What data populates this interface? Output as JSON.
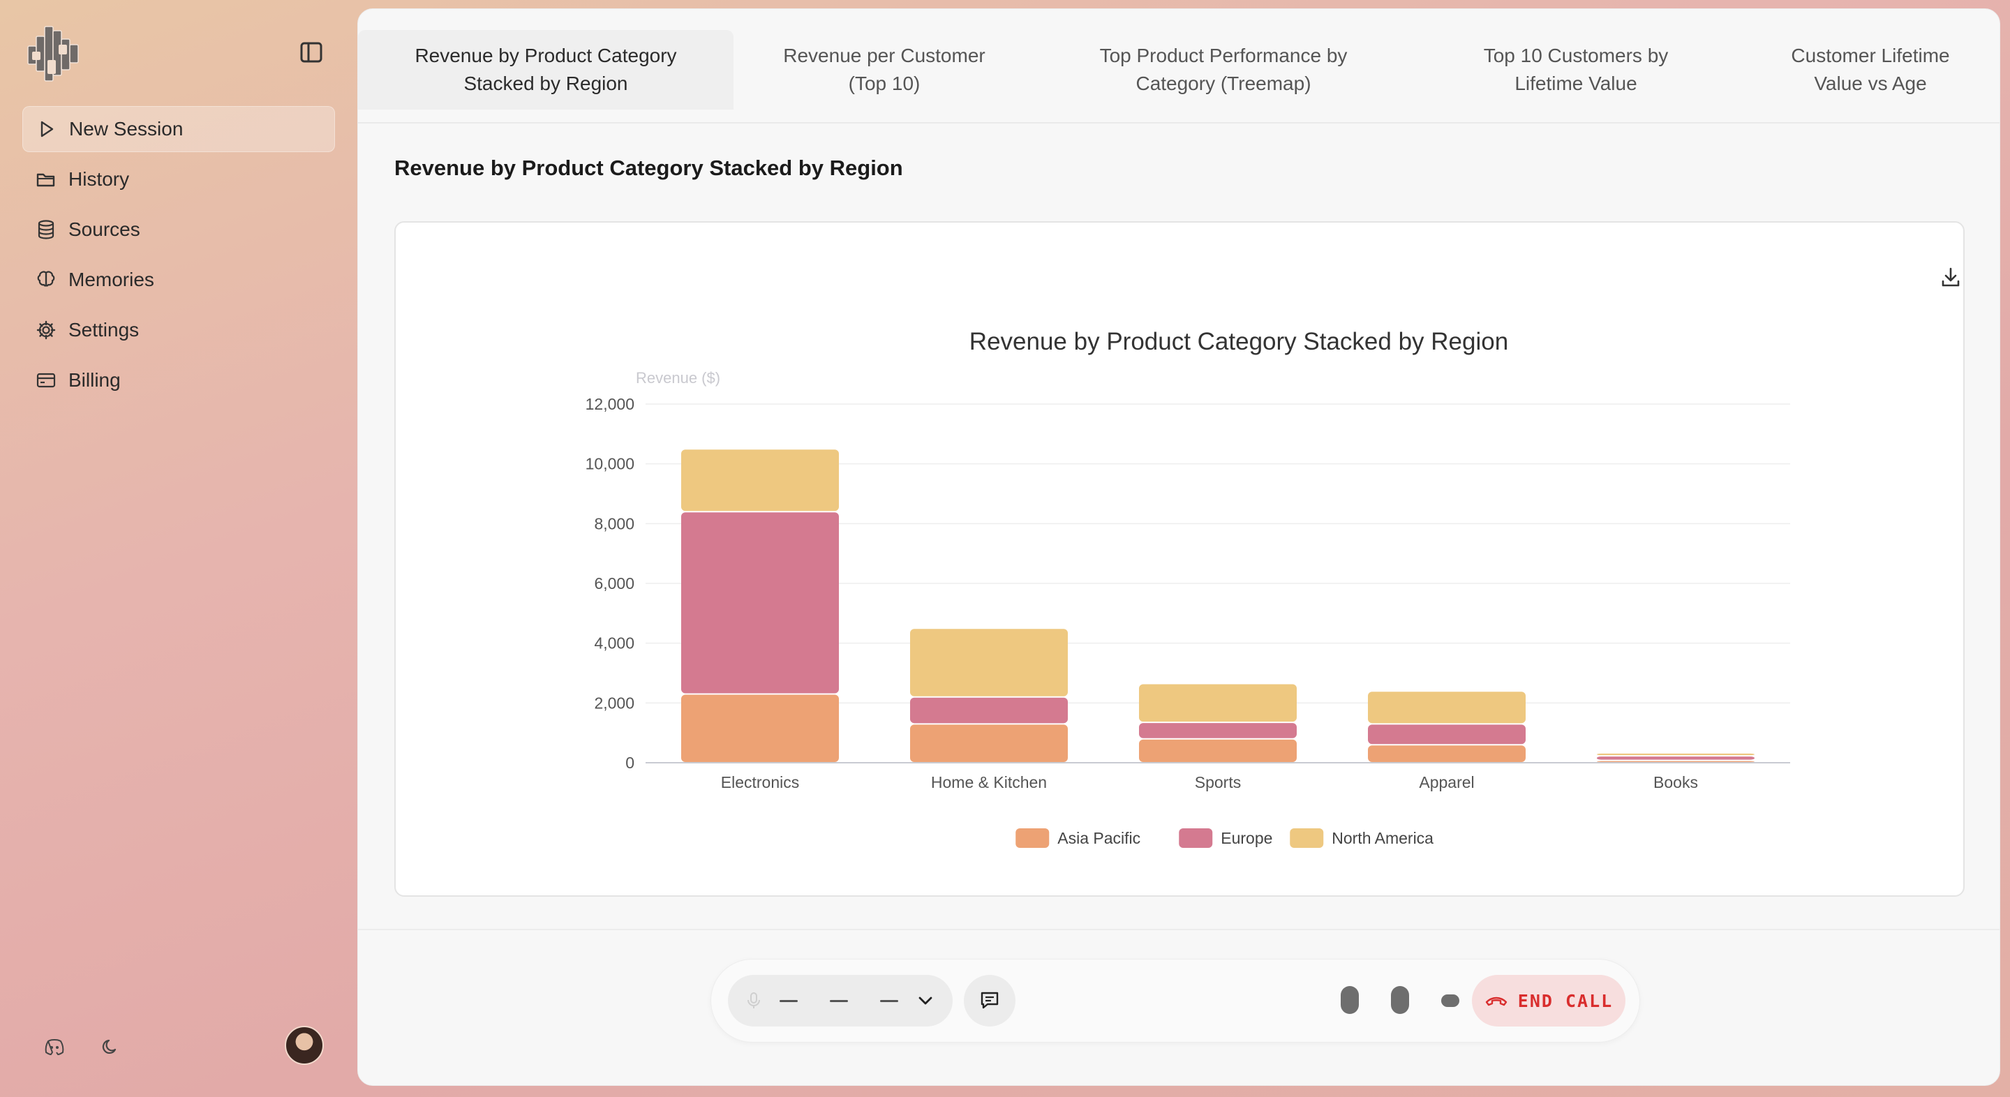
{
  "sidebar": {
    "items": [
      {
        "label": "New Session",
        "icon": "play-icon"
      },
      {
        "label": "History",
        "icon": "folder-icon"
      },
      {
        "label": "Sources",
        "icon": "database-icon"
      },
      {
        "label": "Memories",
        "icon": "brain-icon"
      },
      {
        "label": "Settings",
        "icon": "gear-icon"
      },
      {
        "label": "Billing",
        "icon": "credit-card-icon"
      }
    ]
  },
  "tabs": [
    {
      "line1": "Revenue by Product Category",
      "line2": "Stacked by Region"
    },
    {
      "line1": "Revenue per Customer",
      "line2": "(Top 10)"
    },
    {
      "line1": "Top Product Performance by",
      "line2": "Category (Treemap)"
    },
    {
      "line1": "Top 10 Customers by",
      "line2": "Lifetime Value"
    },
    {
      "line1": "Customer Lifetime",
      "line2": "Value vs Age"
    }
  ],
  "content": {
    "title": "Revenue by Product Category Stacked by Region"
  },
  "chart_data": {
    "type": "bar",
    "stacked": true,
    "title": "Revenue by Product Category Stacked by Region",
    "xlabel": "",
    "ylabel": "Revenue ($)",
    "ylim": [
      0,
      12000
    ],
    "yticks": [
      0,
      2000,
      4000,
      6000,
      8000,
      10000,
      12000
    ],
    "ytick_labels": [
      "0",
      "2,000",
      "4,000",
      "6,000",
      "8,000",
      "10,000",
      "12,000"
    ],
    "categories": [
      "Electronics",
      "Home & Kitchen",
      "Sports",
      "Apparel",
      "Books"
    ],
    "series": [
      {
        "name": "Asia Pacific",
        "color": "#eda274",
        "values": [
          2300,
          1300,
          800,
          600,
          80
        ]
      },
      {
        "name": "Europe",
        "color": "#d47a90",
        "values": [
          6100,
          900,
          550,
          700,
          150
        ]
      },
      {
        "name": "North America",
        "color": "#eec880",
        "values": [
          2100,
          2300,
          1300,
          1100,
          100
        ]
      }
    ],
    "legend_position": "bottom-center",
    "grid": true
  },
  "callbar": {
    "end_call_label": "END CALL"
  }
}
